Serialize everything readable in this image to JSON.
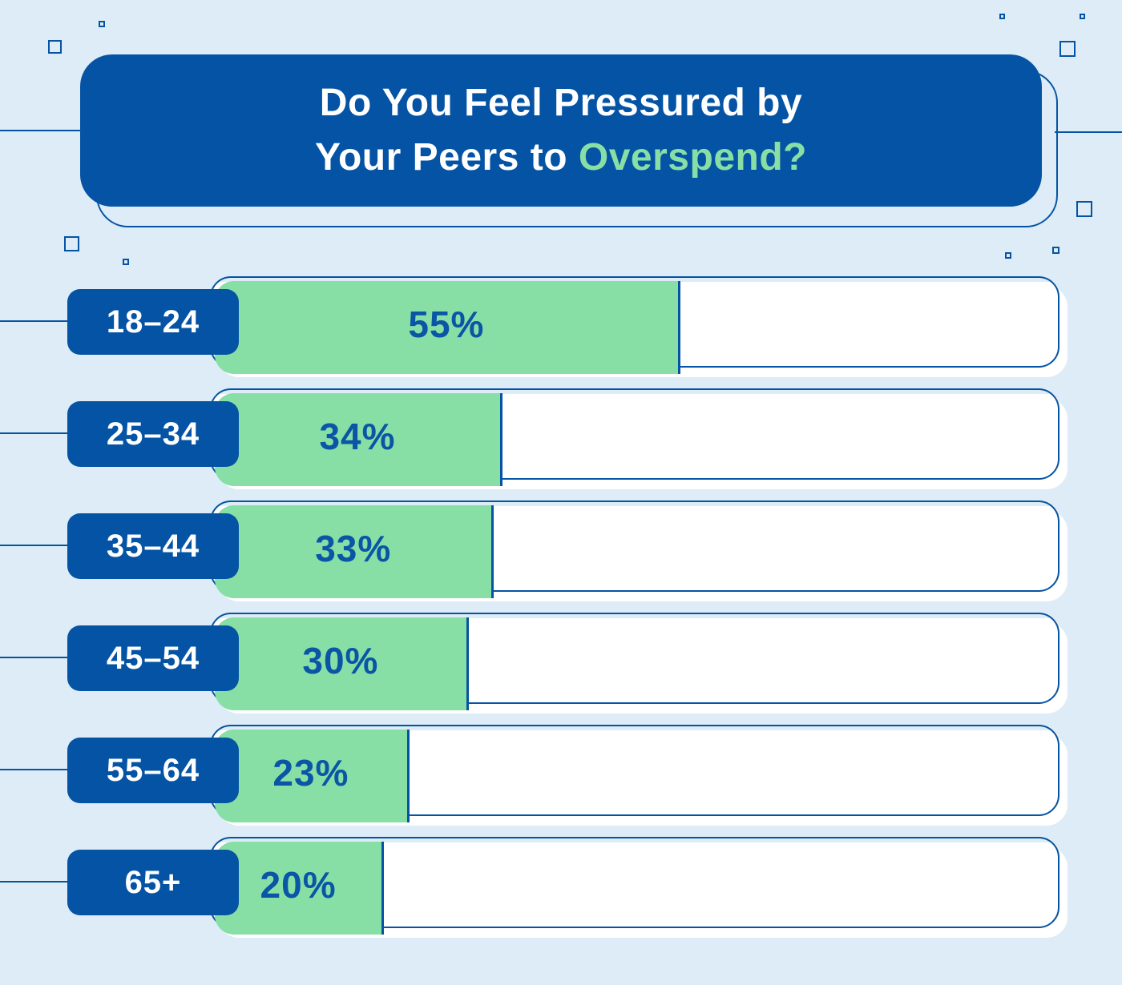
{
  "title": {
    "line1": "Do You Feel Pressured by",
    "line2_prefix": "Your Peers to",
    "line2_highlight": "Overspend?"
  },
  "chart_data": {
    "type": "bar",
    "orientation": "horizontal",
    "title": "Do You Feel Pressured by Your Peers to Overspend?",
    "categories": [
      "18–24",
      "25–34",
      "35–44",
      "45–54",
      "55–64",
      "65+"
    ],
    "values": [
      55,
      34,
      33,
      30,
      23,
      20
    ],
    "bar_labels": [
      "55%",
      "34%",
      "33%",
      "30%",
      "23%",
      "20%"
    ],
    "unit": "%",
    "xlim": [
      0,
      100
    ],
    "grid": false,
    "legend": false
  },
  "colors": {
    "background": "#ddecf6",
    "brand_blue": "#0553a4",
    "accent_green": "#87dfa6",
    "bar_track": "#ffffff",
    "value_text": "#0a55a6"
  }
}
